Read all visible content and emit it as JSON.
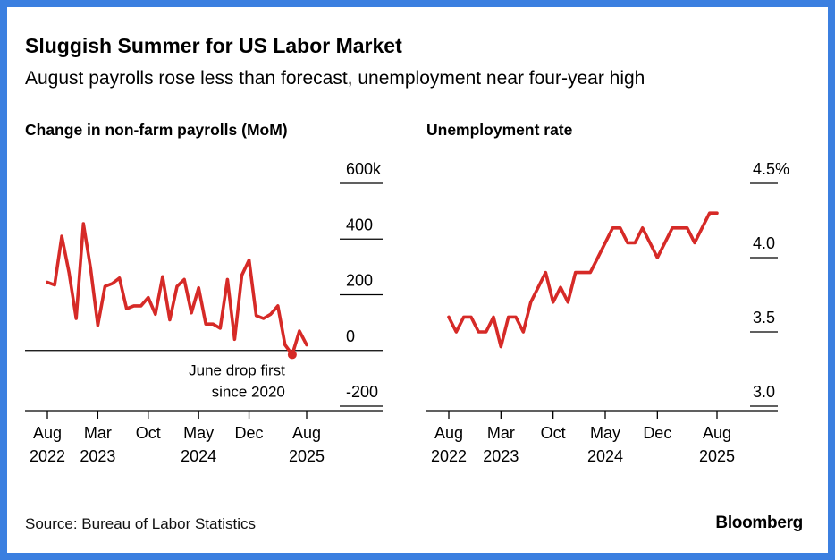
{
  "title": "Sluggish Summer for US Labor Market",
  "subtitle": "August payrolls rose less than forecast, unemployment near four-year high",
  "source": "Source: Bureau of Labor Statistics",
  "brand": "Bloomberg",
  "colors": {
    "line": "#d62a27",
    "frame": "#3b7fe0",
    "axis": "#000000"
  },
  "chart_data": [
    {
      "type": "line",
      "title": "Change in non-farm payrolls (MoM)",
      "ylim": [
        -200,
        600
      ],
      "yticks": [
        {
          "value": 600,
          "label": "600k"
        },
        {
          "value": 400,
          "label": "400"
        },
        {
          "value": 200,
          "label": "200"
        },
        {
          "value": 0,
          "label": "0"
        },
        {
          "value": -200,
          "label": "-200"
        }
      ],
      "xticks": [
        {
          "month": "2022-08",
          "line1": "Aug",
          "line2": "2022"
        },
        {
          "month": "2023-03",
          "line1": "Mar",
          "line2": "2023"
        },
        {
          "month": "2023-10",
          "line1": "Oct",
          "line2": ""
        },
        {
          "month": "2024-05",
          "line1": "May",
          "line2": "2024"
        },
        {
          "month": "2024-12",
          "line1": "Dec",
          "line2": ""
        },
        {
          "month": "2025-08",
          "line1": "Aug",
          "line2": "2025"
        }
      ],
      "x": [
        "2022-08",
        "2022-09",
        "2022-10",
        "2022-11",
        "2022-12",
        "2023-01",
        "2023-02",
        "2023-03",
        "2023-04",
        "2023-05",
        "2023-06",
        "2023-07",
        "2023-08",
        "2023-09",
        "2023-10",
        "2023-11",
        "2023-12",
        "2024-01",
        "2024-02",
        "2024-03",
        "2024-04",
        "2024-05",
        "2024-06",
        "2024-07",
        "2024-08",
        "2024-09",
        "2024-10",
        "2024-11",
        "2024-12",
        "2025-01",
        "2025-02",
        "2025-03",
        "2025-04",
        "2025-05",
        "2025-06",
        "2025-07",
        "2025-08"
      ],
      "values": [
        245,
        235,
        410,
        280,
        115,
        455,
        295,
        90,
        230,
        240,
        260,
        150,
        160,
        160,
        190,
        130,
        265,
        110,
        230,
        255,
        135,
        225,
        95,
        95,
        80,
        255,
        40,
        270,
        325,
        125,
        115,
        130,
        160,
        20,
        -15,
        70,
        20
      ],
      "zero_line": true,
      "highlight": {
        "month": "2025-06",
        "value": -15
      },
      "annotation": [
        "June drop first",
        "since 2020"
      ]
    },
    {
      "type": "line",
      "title": "Unemployment rate",
      "ylim": [
        3.0,
        4.5
      ],
      "yticks": [
        {
          "value": 4.5,
          "label": "4.5%"
        },
        {
          "value": 4.0,
          "label": "4.0"
        },
        {
          "value": 3.5,
          "label": "3.5"
        },
        {
          "value": 3.0,
          "label": "3.0"
        }
      ],
      "xticks": [
        {
          "month": "2022-08",
          "line1": "Aug",
          "line2": "2022"
        },
        {
          "month": "2023-03",
          "line1": "Mar",
          "line2": "2023"
        },
        {
          "month": "2023-10",
          "line1": "Oct",
          "line2": ""
        },
        {
          "month": "2024-05",
          "line1": "May",
          "line2": "2024"
        },
        {
          "month": "2024-12",
          "line1": "Dec",
          "line2": ""
        },
        {
          "month": "2025-08",
          "line1": "Aug",
          "line2": "2025"
        }
      ],
      "x": [
        "2022-08",
        "2022-09",
        "2022-10",
        "2022-11",
        "2022-12",
        "2023-01",
        "2023-02",
        "2023-03",
        "2023-04",
        "2023-05",
        "2023-06",
        "2023-07",
        "2023-08",
        "2023-09",
        "2023-10",
        "2023-11",
        "2023-12",
        "2024-01",
        "2024-02",
        "2024-03",
        "2024-04",
        "2024-05",
        "2024-06",
        "2024-07",
        "2024-08",
        "2024-09",
        "2024-10",
        "2024-11",
        "2024-12",
        "2025-01",
        "2025-02",
        "2025-03",
        "2025-04",
        "2025-05",
        "2025-06",
        "2025-07",
        "2025-08"
      ],
      "values": [
        3.6,
        3.5,
        3.6,
        3.6,
        3.5,
        3.5,
        3.6,
        3.4,
        3.6,
        3.6,
        3.5,
        3.7,
        3.8,
        3.9,
        3.7,
        3.8,
        3.7,
        3.9,
        3.9,
        3.9,
        4.0,
        4.1,
        4.2,
        4.2,
        4.1,
        4.1,
        4.2,
        4.1,
        4.0,
        4.1,
        4.2,
        4.2,
        4.2,
        4.1,
        4.2,
        4.3,
        4.3
      ]
    }
  ]
}
